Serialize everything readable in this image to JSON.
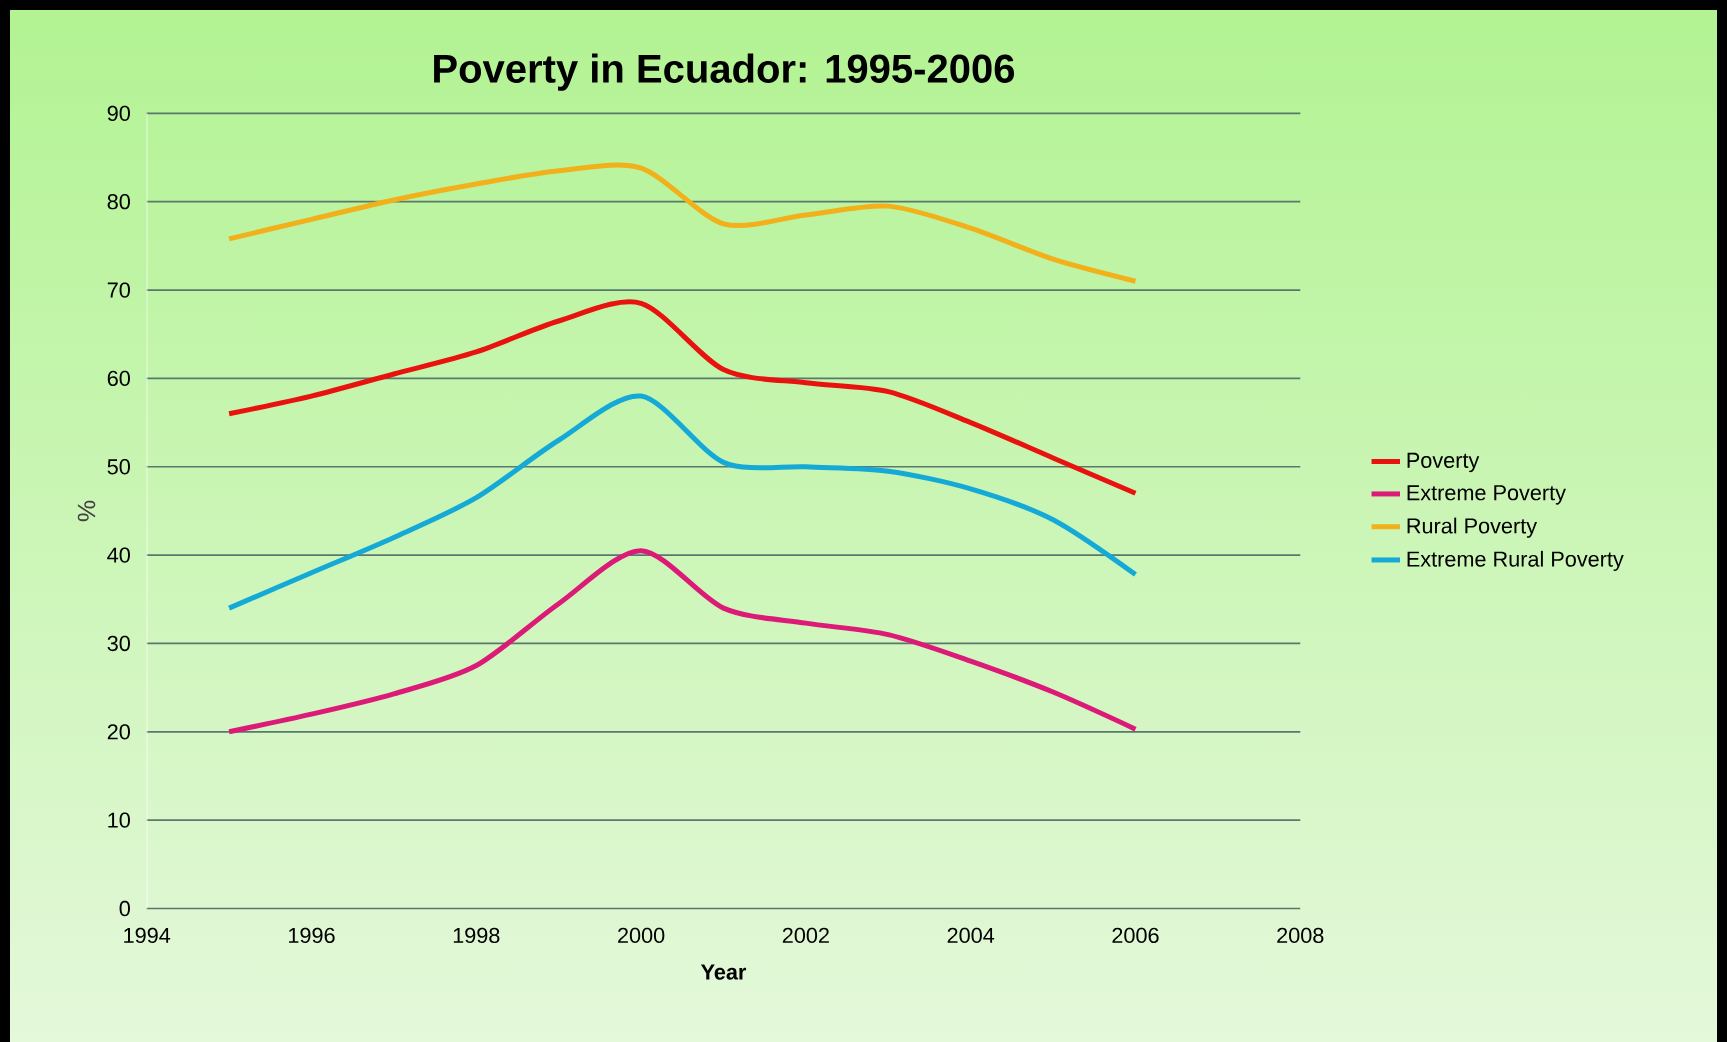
{
  "chart_data": {
    "type": "line",
    "title": "Poverty  in  Ecuador: 1995-2006",
    "xlabel": "Year",
    "ylabel": "%",
    "x": [
      1995,
      1996,
      1997,
      1998,
      1999,
      2000,
      2001,
      2002,
      2003,
      2004,
      2005,
      2006
    ],
    "series": [
      {
        "name": "Poverty",
        "color": "#e8130f",
        "values": [
          56,
          58,
          60.5,
          63,
          66.5,
          68.5,
          61,
          59.5,
          58.5,
          55,
          51,
          47
        ]
      },
      {
        "name": "Extreme Poverty",
        "color": "#dc1a78",
        "values": [
          20,
          22,
          24.3,
          27.5,
          34.5,
          40.5,
          34,
          32.3,
          31,
          28,
          24.5,
          20.3
        ]
      },
      {
        "name": "Rural Poverty",
        "color": "#f2b01a",
        "values": [
          75.8,
          78,
          80.2,
          82,
          83.5,
          83.8,
          77.5,
          78.5,
          79.5,
          77,
          73.5,
          71
        ]
      },
      {
        "name": "Extreme Rural Poverty",
        "color": "#14a9d6",
        "values": [
          34,
          38,
          42,
          46.5,
          53,
          58,
          50.5,
          50,
          49.5,
          47.5,
          44,
          37.8
        ]
      }
    ],
    "xlim": [
      1994,
      2008
    ],
    "xticks": [
      1994,
      1996,
      1998,
      2000,
      2002,
      2004,
      2006,
      2008
    ],
    "ylim": [
      0,
      90
    ],
    "yticks": [
      0,
      10,
      20,
      30,
      40,
      50,
      60,
      70,
      80,
      90
    ],
    "grid": "y",
    "legend": "right",
    "marker": "none",
    "line_style": "solid"
  }
}
